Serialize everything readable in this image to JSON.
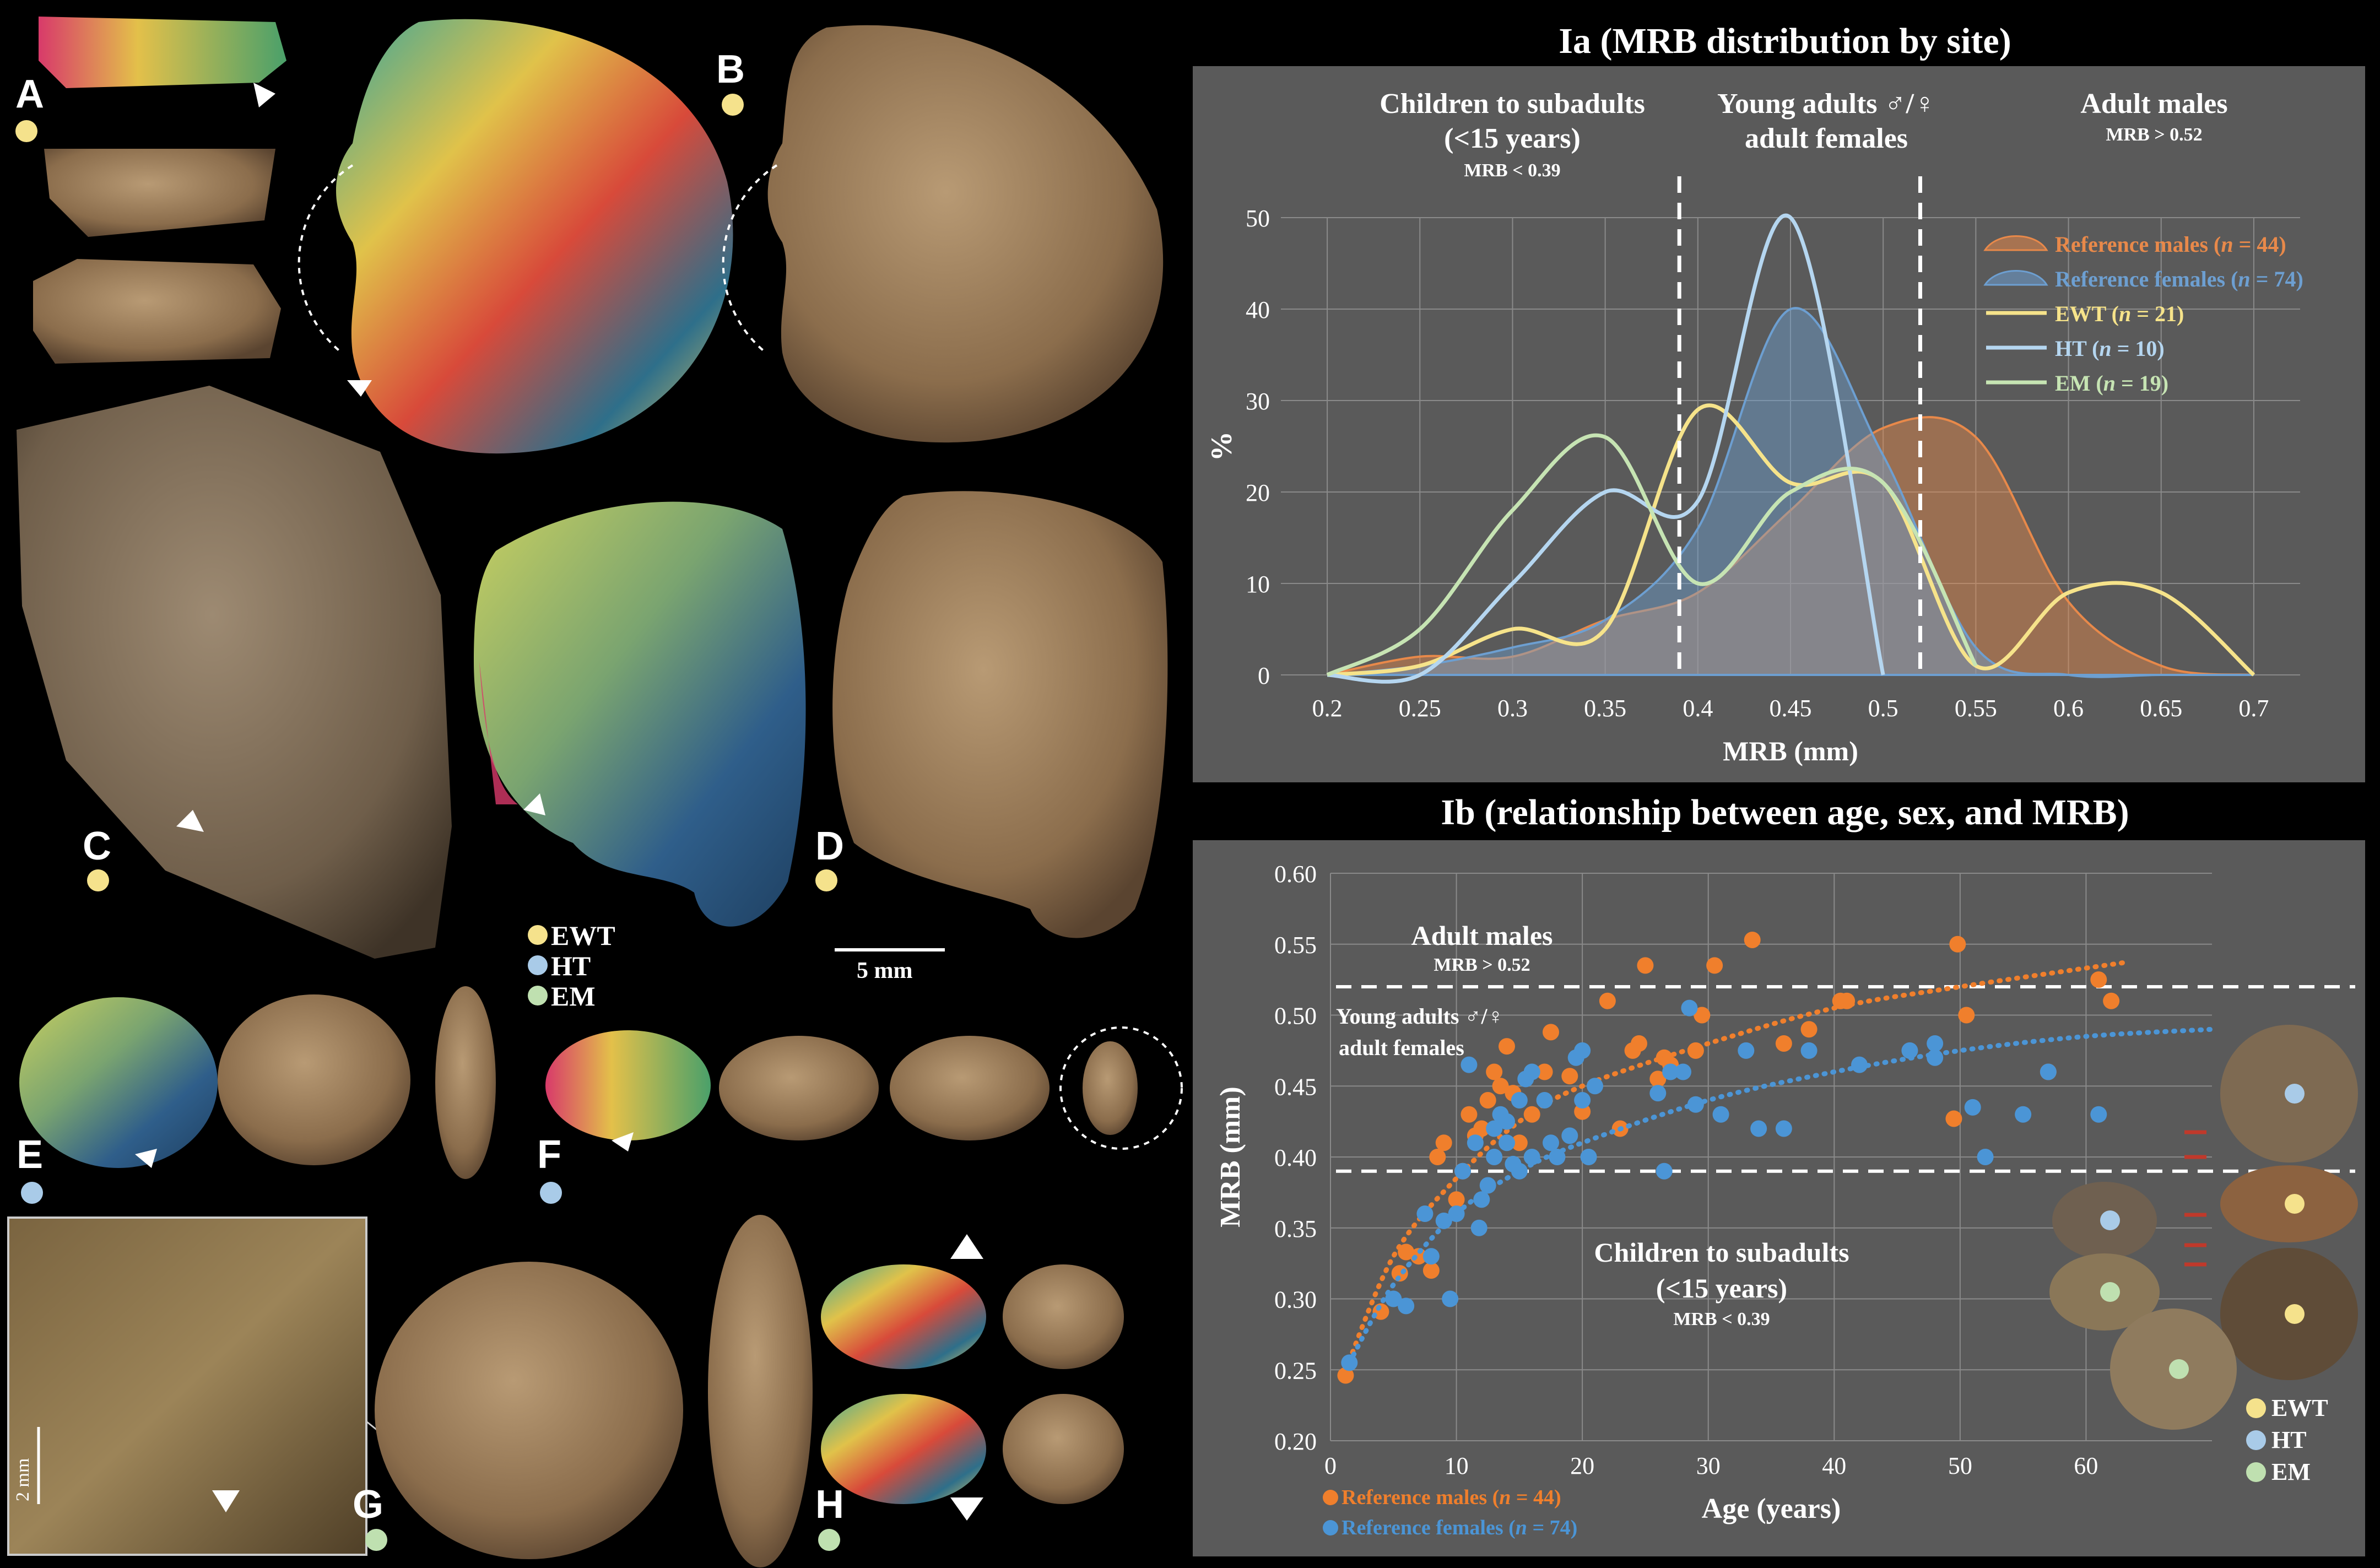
{
  "figure": {
    "panel_letters": [
      "A",
      "B",
      "C",
      "D",
      "E",
      "F",
      "G",
      "H"
    ],
    "site_legend": [
      {
        "label": "EWT",
        "color": "#f5e28c"
      },
      {
        "label": "HT",
        "color": "#a9cbe8"
      },
      {
        "label": "EM",
        "color": "#bfe0b0"
      }
    ],
    "scale_bar": "5 mm",
    "inset_scale": "2 mm"
  },
  "chart_ia": {
    "title": "Ia (MRB distribution by site)",
    "zones": {
      "left": {
        "title_line1": "Children to subadults",
        "title_line2": "(<15 years)",
        "sub": "MRB < 0.39"
      },
      "mid": {
        "title_line1": "Young adults ♂/♀",
        "title_line2": "adult females"
      },
      "right": {
        "title_line1": "Adult males",
        "sub": "MRB > 0.52"
      }
    },
    "xlabel": "MRB (mm)",
    "ylabel": "%",
    "x_ticks": [
      "0.2",
      "0.25",
      "0.3",
      "0.35",
      "0.4",
      "0.45",
      "0.5",
      "0.55",
      "0.6",
      "0.65",
      "0.7"
    ],
    "y_ticks": [
      "0",
      "10",
      "20",
      "30",
      "40",
      "50"
    ],
    "legend": [
      {
        "label": "Reference males (n = 44)",
        "color": "#e8894a"
      },
      {
        "label": "Reference females (n = 74)",
        "color": "#6d9fd1"
      },
      {
        "label": "EWT (n = 21)",
        "color": "#f6e38a"
      },
      {
        "label": "HT (n = 10)",
        "color": "#b5d6f0"
      },
      {
        "label": "EM (n = 19)",
        "color": "#c6e4b3"
      }
    ]
  },
  "chart_ib": {
    "title": "Ib (relationship between age, sex, and MRB)",
    "xlabel": "Age (years)",
    "ylabel": "MRB (mm)",
    "x_ticks": [
      "0",
      "10",
      "20",
      "30",
      "40",
      "50",
      "60"
    ],
    "y_ticks": [
      "0.20",
      "0.25",
      "0.30",
      "0.35",
      "0.40",
      "0.45",
      "0.50",
      "0.55",
      "0.60"
    ],
    "annotations": {
      "adult_males": "Adult males",
      "adult_males_sub": "MRB > 0.52",
      "young_line1": "Young adults ♂/♀",
      "young_line2": "adult females",
      "children_line1": "Children to subadults",
      "children_line2": "(<15 years)",
      "children_sub": "MRB < 0.39"
    },
    "legend": [
      {
        "label": "Reference males (n = 44)",
        "color": "#f07f2c"
      },
      {
        "label": "Reference females (n = 74)",
        "color": "#4b95d6"
      }
    ],
    "site_legend": [
      "EWT",
      "HT",
      "EM"
    ]
  },
  "chart_data": [
    {
      "type": "area",
      "title": "Ia (MRB distribution by site)",
      "xlabel": "MRB (mm)",
      "ylabel": "%",
      "xlim": [
        0.175,
        0.725
      ],
      "ylim": [
        0,
        50
      ],
      "x": [
        0.2,
        0.25,
        0.3,
        0.35,
        0.4,
        0.45,
        0.5,
        0.55,
        0.6,
        0.65,
        0.7
      ],
      "series": [
        {
          "name": "Reference males (n = 44)",
          "kind": "area",
          "values": [
            0,
            2,
            2,
            6,
            9,
            18,
            27,
            26,
            8,
            1,
            0
          ]
        },
        {
          "name": "Reference females (n = 74)",
          "kind": "area",
          "values": [
            0,
            1,
            3,
            6,
            16,
            40,
            24,
            3,
            0,
            0,
            0
          ]
        },
        {
          "name": "EWT (n = 21)",
          "kind": "line",
          "values": [
            0,
            1,
            5,
            5,
            29,
            21,
            21,
            1,
            9,
            9,
            0
          ]
        },
        {
          "name": "HT (n = 10)",
          "kind": "line",
          "values": [
            0,
            0,
            10,
            20,
            19,
            50,
            0,
            null,
            null,
            null,
            null
          ]
        },
        {
          "name": "EM (n = 19)",
          "kind": "line",
          "values": [
            0,
            5,
            18,
            26,
            10,
            20,
            21,
            1,
            null,
            null,
            null
          ]
        }
      ],
      "vlines": [
        0.39,
        0.52
      ]
    },
    {
      "type": "scatter",
      "title": "Ib (relationship between age, sex, and MRB)",
      "xlabel": "Age (years)",
      "ylabel": "MRB (mm)",
      "xlim": [
        0,
        70
      ],
      "ylim": [
        0.2,
        0.6
      ],
      "hlines": [
        0.52,
        0.39
      ],
      "series": [
        {
          "name": "Reference males (n = 44)",
          "color": "#f07f2c",
          "points": [
            [
              1.2,
              0.246
            ],
            [
              4,
              0.291
            ],
            [
              5.5,
              0.318
            ],
            [
              6,
              0.333
            ],
            [
              7,
              0.33
            ],
            [
              8,
              0.32
            ],
            [
              8.5,
              0.4
            ],
            [
              9,
              0.41
            ],
            [
              10,
              0.37
            ],
            [
              10.5,
              0.39
            ],
            [
              11,
              0.43
            ],
            [
              11.5,
              0.415
            ],
            [
              12,
              0.42
            ],
            [
              12.5,
              0.44
            ],
            [
              13,
              0.46
            ],
            [
              13.5,
              0.45
            ],
            [
              14,
              0.478
            ],
            [
              14.5,
              0.445
            ],
            [
              15,
              0.41
            ],
            [
              16,
              0.43
            ],
            [
              17,
              0.46
            ],
            [
              17.5,
              0.488
            ],
            [
              19,
              0.457
            ],
            [
              20,
              0.432
            ],
            [
              22,
              0.51
            ],
            [
              23,
              0.42
            ],
            [
              24,
              0.475
            ],
            [
              24.5,
              0.48
            ],
            [
              25,
              0.535
            ],
            [
              26,
              0.455
            ],
            [
              26.5,
              0.47
            ],
            [
              27,
              0.465
            ],
            [
              29,
              0.475
            ],
            [
              29.5,
              0.5
            ],
            [
              30.5,
              0.535
            ],
            [
              33.5,
              0.553
            ],
            [
              36,
              0.48
            ],
            [
              38,
              0.49
            ],
            [
              40.5,
              0.51
            ],
            [
              41,
              0.51
            ],
            [
              49.5,
              0.427
            ],
            [
              49.8,
              0.55
            ],
            [
              50.5,
              0.5
            ],
            [
              57,
              0.46
            ],
            [
              61,
              0.525
            ],
            [
              62,
              0.51
            ]
          ],
          "trend": [
            [
              1,
              0.245
            ],
            [
              5,
              0.33
            ],
            [
              10,
              0.385
            ],
            [
              15,
              0.425
            ],
            [
              20,
              0.45
            ],
            [
              30,
              0.48
            ],
            [
              40,
              0.505
            ],
            [
              50,
              0.52
            ],
            [
              63,
              0.537
            ]
          ]
        },
        {
          "name": "Reference females (n = 74)",
          "color": "#4b95d6",
          "points": [
            [
              1.5,
              0.255
            ],
            [
              5,
              0.3
            ],
            [
              6,
              0.295
            ],
            [
              7.5,
              0.36
            ],
            [
              8,
              0.33
            ],
            [
              9,
              0.355
            ],
            [
              9.5,
              0.3
            ],
            [
              10,
              0.36
            ],
            [
              10.5,
              0.39
            ],
            [
              11,
              0.465
            ],
            [
              11.5,
              0.41
            ],
            [
              11.8,
              0.35
            ],
            [
              12,
              0.37
            ],
            [
              12.5,
              0.38
            ],
            [
              13,
              0.4
            ],
            [
              13,
              0.42
            ],
            [
              13.5,
              0.43
            ],
            [
              14,
              0.41
            ],
            [
              14,
              0.425
            ],
            [
              14.5,
              0.395
            ],
            [
              15,
              0.44
            ],
            [
              15,
              0.39
            ],
            [
              15.5,
              0.455
            ],
            [
              16,
              0.46
            ],
            [
              16,
              0.4
            ],
            [
              17,
              0.44
            ],
            [
              17.5,
              0.41
            ],
            [
              18,
              0.4
            ],
            [
              19,
              0.415
            ],
            [
              19.5,
              0.47
            ],
            [
              20,
              0.475
            ],
            [
              20,
              0.44
            ],
            [
              20.5,
              0.4
            ],
            [
              21,
              0.45
            ],
            [
              26,
              0.445
            ],
            [
              26.5,
              0.39
            ],
            [
              27,
              0.46
            ],
            [
              28,
              0.46
            ],
            [
              28.5,
              0.505
            ],
            [
              29,
              0.437
            ],
            [
              31,
              0.43
            ],
            [
              33,
              0.475
            ],
            [
              34,
              0.42
            ],
            [
              36,
              0.42
            ],
            [
              38,
              0.475
            ],
            [
              42,
              0.465
            ],
            [
              46,
              0.475
            ],
            [
              48,
              0.48
            ],
            [
              48,
              0.47
            ],
            [
              51,
              0.435
            ],
            [
              52,
              0.4
            ],
            [
              55,
              0.43
            ],
            [
              57,
              0.46
            ],
            [
              61,
              0.43
            ]
          ],
          "trend": [
            [
              1.5,
              0.255
            ],
            [
              5,
              0.31
            ],
            [
              10,
              0.36
            ],
            [
              15,
              0.39
            ],
            [
              20,
              0.41
            ],
            [
              30,
              0.44
            ],
            [
              40,
              0.46
            ],
            [
              50,
              0.475
            ],
            [
              60,
              0.485
            ],
            [
              70,
              0.49
            ]
          ]
        }
      ]
    }
  ]
}
